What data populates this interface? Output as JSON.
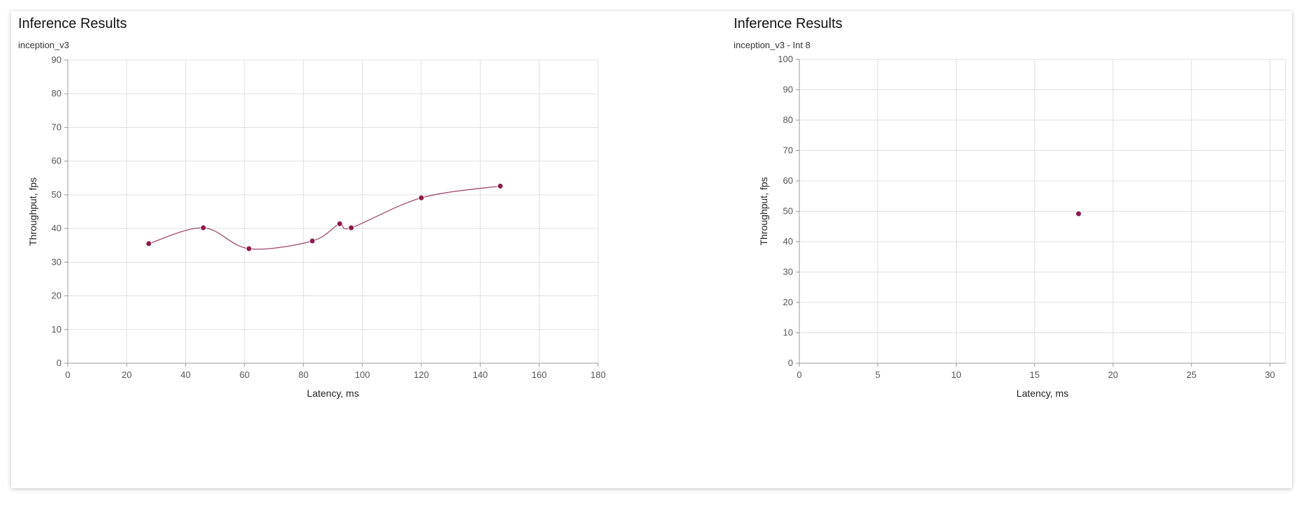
{
  "colors": {
    "series": "#8b1a4a",
    "grid": "#e0e0e0",
    "axis": "#999999"
  },
  "chart_data": [
    {
      "type": "line",
      "title": "Inference Results",
      "subtitle": "inception_v3",
      "xlabel": "Latency, ms",
      "ylabel": "Throughput, fps",
      "xlim": [
        0,
        180
      ],
      "ylim": [
        0,
        90
      ],
      "xticks": [
        0,
        20,
        40,
        60,
        80,
        100,
        120,
        140,
        160,
        180
      ],
      "yticks": [
        0,
        10,
        20,
        30,
        40,
        50,
        60,
        70,
        80,
        90
      ],
      "grid": true,
      "smooth": true,
      "series": [
        {
          "x": [
            27.5,
            46,
            61.5,
            83,
            92.3,
            96.2,
            120,
            146.8
          ],
          "y": [
            35.5,
            40.2,
            34,
            36.3,
            41.4,
            40.2,
            49.1,
            52.6
          ]
        }
      ]
    },
    {
      "type": "scatter",
      "title": "Inference Results",
      "subtitle": "inception_v3 - Int 8",
      "xlabel": "Latency, ms",
      "ylabel": "Throughput, fps",
      "xlim": [
        0,
        31
      ],
      "ylim": [
        0,
        100
      ],
      "xticks": [
        0,
        5,
        10,
        15,
        20,
        25,
        30
      ],
      "yticks": [
        0,
        10,
        20,
        30,
        40,
        50,
        60,
        70,
        80,
        90,
        100
      ],
      "grid": true,
      "smooth": false,
      "series": [
        {
          "x": [
            17.8
          ],
          "y": [
            49.2
          ]
        }
      ]
    }
  ]
}
